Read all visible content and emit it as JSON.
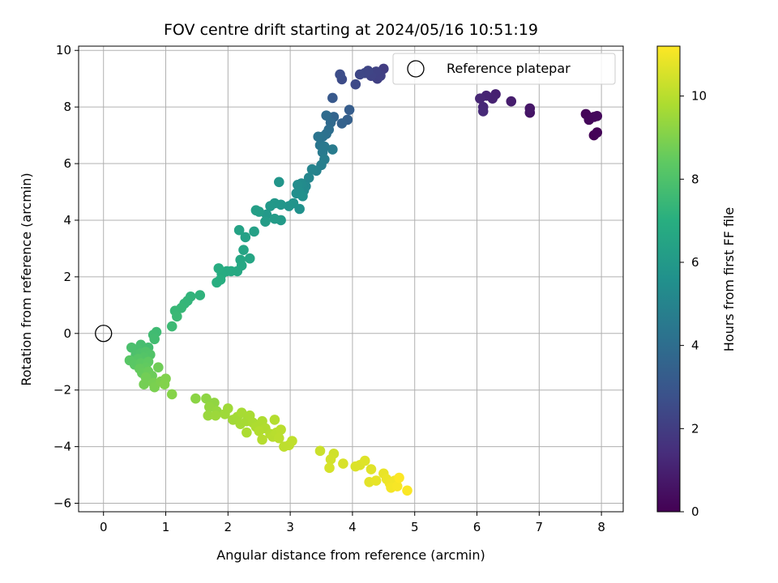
{
  "chart_data": {
    "type": "scatter",
    "title": "FOV centre drift starting at 2024/05/16 10:51:19",
    "xlabel": "Angular distance from reference (arcmin)",
    "ylabel": "Rotation from reference (arcmin)",
    "xlim": [
      -0.4,
      8.35
    ],
    "ylim": [
      -6.3,
      10.15
    ],
    "xticks": [
      0,
      1,
      2,
      3,
      4,
      5,
      6,
      7,
      8
    ],
    "yticks": [
      -6,
      -4,
      -2,
      0,
      2,
      4,
      6,
      8,
      10
    ],
    "grid": true,
    "legend": {
      "position": "top-right",
      "entries": [
        "Reference platepar"
      ]
    },
    "reference_point": {
      "x": 0,
      "y": 0,
      "label": "Reference platepar"
    },
    "colorbar": {
      "label": "Hours from first FF file",
      "cmap": "viridis",
      "range": [
        0,
        11.2
      ],
      "ticks": [
        0,
        2,
        4,
        6,
        8,
        10
      ]
    },
    "points": [
      {
        "x": 7.88,
        "y": 7.0,
        "c": 0.05
      },
      {
        "x": 7.93,
        "y": 7.1,
        "c": 0.1
      },
      {
        "x": 7.75,
        "y": 7.75,
        "c": 0.15
      },
      {
        "x": 7.8,
        "y": 7.55,
        "c": 0.2
      },
      {
        "x": 7.88,
        "y": 7.65,
        "c": 0.25
      },
      {
        "x": 7.93,
        "y": 7.68,
        "c": 0.3
      },
      {
        "x": 6.85,
        "y": 7.8,
        "c": 0.6
      },
      {
        "x": 6.85,
        "y": 7.95,
        "c": 0.7
      },
      {
        "x": 6.55,
        "y": 8.2,
        "c": 0.9
      },
      {
        "x": 6.3,
        "y": 8.45,
        "c": 1.0
      },
      {
        "x": 6.25,
        "y": 8.3,
        "c": 1.05
      },
      {
        "x": 6.15,
        "y": 8.4,
        "c": 1.1
      },
      {
        "x": 6.05,
        "y": 8.3,
        "c": 1.2
      },
      {
        "x": 6.1,
        "y": 8.0,
        "c": 1.25
      },
      {
        "x": 6.1,
        "y": 7.85,
        "c": 1.3
      },
      {
        "x": 4.5,
        "y": 9.35,
        "c": 2.0
      },
      {
        "x": 4.4,
        "y": 9.0,
        "c": 2.1
      },
      {
        "x": 4.45,
        "y": 9.1,
        "c": 2.15
      },
      {
        "x": 4.38,
        "y": 9.25,
        "c": 2.2
      },
      {
        "x": 4.3,
        "y": 9.1,
        "c": 2.25
      },
      {
        "x": 4.25,
        "y": 9.28,
        "c": 2.3
      },
      {
        "x": 4.2,
        "y": 9.2,
        "c": 2.35
      },
      {
        "x": 4.12,
        "y": 9.15,
        "c": 2.4
      },
      {
        "x": 4.05,
        "y": 8.8,
        "c": 2.5
      },
      {
        "x": 3.83,
        "y": 8.98,
        "c": 2.55
      },
      {
        "x": 3.8,
        "y": 9.15,
        "c": 2.6
      },
      {
        "x": 3.68,
        "y": 8.32,
        "c": 3.1
      },
      {
        "x": 3.95,
        "y": 7.9,
        "c": 3.3
      },
      {
        "x": 3.92,
        "y": 7.55,
        "c": 3.4
      },
      {
        "x": 3.83,
        "y": 7.42,
        "c": 3.5
      },
      {
        "x": 3.7,
        "y": 7.65,
        "c": 3.6
      },
      {
        "x": 3.65,
        "y": 7.45,
        "c": 3.8
      },
      {
        "x": 3.58,
        "y": 7.7,
        "c": 3.9
      },
      {
        "x": 3.62,
        "y": 7.2,
        "c": 4.0
      },
      {
        "x": 3.58,
        "y": 7.05,
        "c": 4.1
      },
      {
        "x": 3.52,
        "y": 6.95,
        "c": 4.2
      },
      {
        "x": 3.45,
        "y": 6.95,
        "c": 4.3
      },
      {
        "x": 3.48,
        "y": 6.65,
        "c": 4.4
      },
      {
        "x": 3.55,
        "y": 6.6,
        "c": 4.5
      },
      {
        "x": 3.52,
        "y": 6.4,
        "c": 4.55
      },
      {
        "x": 3.68,
        "y": 6.5,
        "c": 4.6
      },
      {
        "x": 3.55,
        "y": 6.15,
        "c": 4.7
      },
      {
        "x": 3.5,
        "y": 5.95,
        "c": 4.8
      },
      {
        "x": 3.42,
        "y": 5.75,
        "c": 4.9
      },
      {
        "x": 3.35,
        "y": 5.8,
        "c": 5.0
      },
      {
        "x": 3.3,
        "y": 5.5,
        "c": 5.1
      },
      {
        "x": 3.25,
        "y": 5.2,
        "c": 5.2
      },
      {
        "x": 3.22,
        "y": 5.05,
        "c": 5.3
      },
      {
        "x": 3.18,
        "y": 5.3,
        "c": 5.35
      },
      {
        "x": 3.12,
        "y": 5.25,
        "c": 5.4
      },
      {
        "x": 3.15,
        "y": 5.0,
        "c": 5.45
      },
      {
        "x": 3.1,
        "y": 4.95,
        "c": 5.5
      },
      {
        "x": 3.2,
        "y": 4.85,
        "c": 5.55
      },
      {
        "x": 3.15,
        "y": 4.4,
        "c": 5.6
      },
      {
        "x": 3.05,
        "y": 4.6,
        "c": 5.7
      },
      {
        "x": 2.98,
        "y": 4.5,
        "c": 5.75
      },
      {
        "x": 2.82,
        "y": 5.35,
        "c": 5.8
      },
      {
        "x": 2.85,
        "y": 4.55,
        "c": 5.85
      },
      {
        "x": 2.75,
        "y": 4.6,
        "c": 5.9
      },
      {
        "x": 2.68,
        "y": 4.5,
        "c": 5.95
      },
      {
        "x": 2.62,
        "y": 4.2,
        "c": 6.0
      },
      {
        "x": 2.85,
        "y": 4.0,
        "c": 6.05
      },
      {
        "x": 2.75,
        "y": 4.05,
        "c": 6.1
      },
      {
        "x": 2.6,
        "y": 3.95,
        "c": 6.15
      },
      {
        "x": 2.5,
        "y": 4.3,
        "c": 6.2
      },
      {
        "x": 2.45,
        "y": 4.35,
        "c": 6.25
      },
      {
        "x": 2.42,
        "y": 3.6,
        "c": 6.3
      },
      {
        "x": 2.28,
        "y": 3.4,
        "c": 6.35
      },
      {
        "x": 2.18,
        "y": 3.65,
        "c": 6.4
      },
      {
        "x": 2.25,
        "y": 2.95,
        "c": 6.5
      },
      {
        "x": 2.35,
        "y": 2.65,
        "c": 6.55
      },
      {
        "x": 2.2,
        "y": 2.6,
        "c": 6.6
      },
      {
        "x": 2.22,
        "y": 2.4,
        "c": 6.65
      },
      {
        "x": 2.15,
        "y": 2.2,
        "c": 6.7
      },
      {
        "x": 2.05,
        "y": 2.2,
        "c": 6.75
      },
      {
        "x": 1.98,
        "y": 2.2,
        "c": 6.8
      },
      {
        "x": 1.9,
        "y": 2.1,
        "c": 6.85
      },
      {
        "x": 1.85,
        "y": 2.3,
        "c": 6.9
      },
      {
        "x": 1.88,
        "y": 1.9,
        "c": 6.95
      },
      {
        "x": 1.82,
        "y": 1.8,
        "c": 7.0
      },
      {
        "x": 1.55,
        "y": 1.35,
        "c": 7.2
      },
      {
        "x": 1.4,
        "y": 1.3,
        "c": 7.25
      },
      {
        "x": 1.35,
        "y": 1.15,
        "c": 7.3
      },
      {
        "x": 1.3,
        "y": 1.05,
        "c": 7.35
      },
      {
        "x": 1.25,
        "y": 0.9,
        "c": 7.4
      },
      {
        "x": 1.15,
        "y": 0.8,
        "c": 7.45
      },
      {
        "x": 1.18,
        "y": 0.6,
        "c": 7.5
      },
      {
        "x": 1.1,
        "y": 0.25,
        "c": 7.55
      },
      {
        "x": 0.85,
        "y": 0.05,
        "c": 7.6
      },
      {
        "x": 0.8,
        "y": -0.05,
        "c": 7.65
      },
      {
        "x": 0.82,
        "y": -0.2,
        "c": 7.7
      },
      {
        "x": 0.72,
        "y": -0.5,
        "c": 7.75
      },
      {
        "x": 0.6,
        "y": -0.4,
        "c": 7.8
      },
      {
        "x": 0.55,
        "y": -0.55,
        "c": 7.85
      },
      {
        "x": 0.45,
        "y": -0.5,
        "c": 7.9
      },
      {
        "x": 0.52,
        "y": -0.75,
        "c": 7.95
      },
      {
        "x": 0.6,
        "y": -0.7,
        "c": 8.0
      },
      {
        "x": 0.68,
        "y": -0.65,
        "c": 8.05
      },
      {
        "x": 0.75,
        "y": -0.75,
        "c": 8.1
      },
      {
        "x": 0.65,
        "y": -0.85,
        "c": 8.15
      },
      {
        "x": 0.55,
        "y": -0.9,
        "c": 8.2
      },
      {
        "x": 0.42,
        "y": -0.95,
        "c": 8.25
      },
      {
        "x": 0.5,
        "y": -1.1,
        "c": 8.3
      },
      {
        "x": 0.6,
        "y": -1.05,
        "c": 8.35
      },
      {
        "x": 0.72,
        "y": -1.0,
        "c": 8.4
      },
      {
        "x": 0.68,
        "y": -1.2,
        "c": 8.45
      },
      {
        "x": 0.58,
        "y": -1.25,
        "c": 8.5
      },
      {
        "x": 0.62,
        "y": -1.4,
        "c": 8.55
      },
      {
        "x": 0.72,
        "y": -1.35,
        "c": 8.6
      },
      {
        "x": 0.78,
        "y": -1.5,
        "c": 8.65
      },
      {
        "x": 0.88,
        "y": -1.2,
        "c": 8.7
      },
      {
        "x": 0.68,
        "y": -1.55,
        "c": 8.75
      },
      {
        "x": 0.65,
        "y": -1.8,
        "c": 8.8
      },
      {
        "x": 0.8,
        "y": -1.75,
        "c": 8.85
      },
      {
        "x": 0.82,
        "y": -1.9,
        "c": 8.9
      },
      {
        "x": 0.92,
        "y": -1.7,
        "c": 8.95
      },
      {
        "x": 1.0,
        "y": -1.6,
        "c": 9.0
      },
      {
        "x": 0.98,
        "y": -1.8,
        "c": 9.05
      },
      {
        "x": 1.1,
        "y": -2.15,
        "c": 9.1
      },
      {
        "x": 1.48,
        "y": -2.3,
        "c": 9.2
      },
      {
        "x": 1.65,
        "y": -2.3,
        "c": 9.25
      },
      {
        "x": 1.78,
        "y": -2.45,
        "c": 9.3
      },
      {
        "x": 1.7,
        "y": -2.6,
        "c": 9.35
      },
      {
        "x": 1.82,
        "y": -2.75,
        "c": 9.4
      },
      {
        "x": 1.68,
        "y": -2.9,
        "c": 9.45
      },
      {
        "x": 1.8,
        "y": -2.9,
        "c": 9.5
      },
      {
        "x": 1.95,
        "y": -2.85,
        "c": 9.55
      },
      {
        "x": 2.0,
        "y": -2.65,
        "c": 9.55
      },
      {
        "x": 2.08,
        "y": -3.05,
        "c": 9.6
      },
      {
        "x": 2.15,
        "y": -2.95,
        "c": 9.62
      },
      {
        "x": 2.2,
        "y": -3.2,
        "c": 9.65
      },
      {
        "x": 2.3,
        "y": -3.1,
        "c": 9.68
      },
      {
        "x": 2.22,
        "y": -2.8,
        "c": 9.7
      },
      {
        "x": 2.35,
        "y": -2.9,
        "c": 9.72
      },
      {
        "x": 2.4,
        "y": -3.15,
        "c": 9.75
      },
      {
        "x": 2.3,
        "y": -3.5,
        "c": 9.78
      },
      {
        "x": 2.45,
        "y": -3.3,
        "c": 9.8
      },
      {
        "x": 2.55,
        "y": -3.1,
        "c": 9.82
      },
      {
        "x": 2.6,
        "y": -3.35,
        "c": 9.85
      },
      {
        "x": 2.5,
        "y": -3.45,
        "c": 9.88
      },
      {
        "x": 2.68,
        "y": -3.55,
        "c": 9.9
      },
      {
        "x": 2.75,
        "y": -3.05,
        "c": 9.92
      },
      {
        "x": 2.55,
        "y": -3.75,
        "c": 9.95
      },
      {
        "x": 2.72,
        "y": -3.65,
        "c": 9.98
      },
      {
        "x": 2.78,
        "y": -3.5,
        "c": 10.0
      },
      {
        "x": 2.85,
        "y": -3.4,
        "c": 10.02
      },
      {
        "x": 2.82,
        "y": -3.7,
        "c": 10.05
      },
      {
        "x": 2.9,
        "y": -4.0,
        "c": 10.08
      },
      {
        "x": 2.98,
        "y": -3.95,
        "c": 10.1
      },
      {
        "x": 3.03,
        "y": -3.8,
        "c": 10.12
      },
      {
        "x": 3.48,
        "y": -4.15,
        "c": 10.3
      },
      {
        "x": 3.7,
        "y": -4.25,
        "c": 10.4
      },
      {
        "x": 3.65,
        "y": -4.45,
        "c": 10.45
      },
      {
        "x": 3.63,
        "y": -4.75,
        "c": 10.5
      },
      {
        "x": 3.85,
        "y": -4.6,
        "c": 10.55
      },
      {
        "x": 4.05,
        "y": -4.7,
        "c": 10.6
      },
      {
        "x": 4.12,
        "y": -4.65,
        "c": 10.62
      },
      {
        "x": 4.2,
        "y": -4.5,
        "c": 10.65
      },
      {
        "x": 4.3,
        "y": -4.8,
        "c": 10.7
      },
      {
        "x": 4.27,
        "y": -5.25,
        "c": 10.75
      },
      {
        "x": 4.38,
        "y": -5.2,
        "c": 10.8
      },
      {
        "x": 4.5,
        "y": -4.95,
        "c": 10.85
      },
      {
        "x": 4.55,
        "y": -5.15,
        "c": 10.9
      },
      {
        "x": 4.6,
        "y": -5.3,
        "c": 10.95
      },
      {
        "x": 4.68,
        "y": -5.2,
        "c": 11.0
      },
      {
        "x": 4.62,
        "y": -5.45,
        "c": 11.05
      },
      {
        "x": 4.72,
        "y": -5.4,
        "c": 11.1
      },
      {
        "x": 4.88,
        "y": -5.55,
        "c": 11.15
      },
      {
        "x": 4.75,
        "y": -5.1,
        "c": 11.18
      }
    ]
  }
}
